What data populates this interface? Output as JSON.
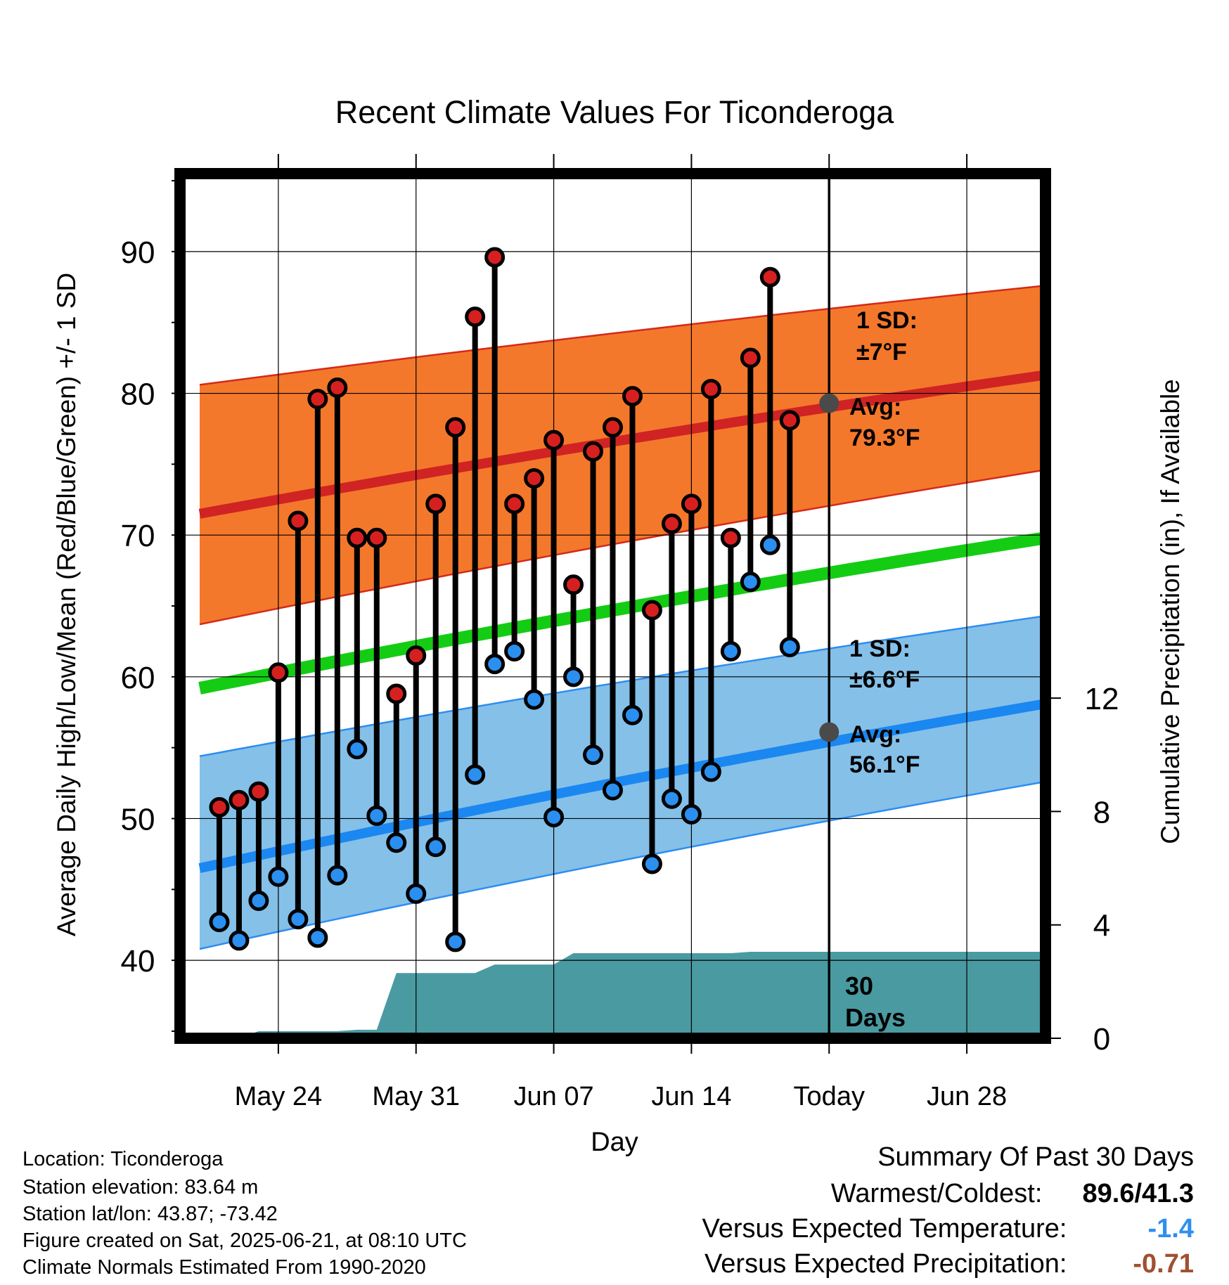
{
  "chart_data": {
    "type": "line",
    "title": "Recent Climate Values For Ticonderoga",
    "xlabel": "Day",
    "ylabel": "Average Daily High/Low/Mean (Red/Blue/Green) +/- 1 SD",
    "y2label": "Cumulative Precipitation (in), If Available",
    "ylim": [
      34.5,
      95.5
    ],
    "y2lim": [
      0,
      30.5
    ],
    "xlim": [
      "2025-05-19",
      "2025-07-02"
    ],
    "x_ticks": [
      {
        "date": "2025-05-24",
        "label": "May 24"
      },
      {
        "date": "2025-05-31",
        "label": "May 31"
      },
      {
        "date": "2025-06-07",
        "label": "Jun 07"
      },
      {
        "date": "2025-06-14",
        "label": "Jun 14"
      },
      {
        "date": "2025-06-21",
        "label": "Today"
      },
      {
        "date": "2025-06-28",
        "label": "Jun 28"
      }
    ],
    "y_ticks": [
      40,
      50,
      60,
      70,
      80,
      90
    ],
    "y2_ticks": [
      0,
      4,
      8,
      12
    ],
    "grid": true,
    "today": "2025-06-21",
    "today_label": "30 Days",
    "normals": {
      "x": [
        "2025-05-20",
        "2025-07-02"
      ],
      "high_avg": [
        71.5,
        81.3
      ],
      "high_upper": [
        80.6,
        87.6
      ],
      "high_lower": [
        63.7,
        74.6
      ],
      "mean": [
        59.2,
        69.8
      ],
      "low_avg": [
        46.5,
        58.1
      ],
      "low_upper": [
        54.4,
        64.3
      ],
      "low_lower": [
        40.8,
        52.6
      ]
    },
    "series": [
      {
        "name": "High",
        "color": "#d62020",
        "x": [
          "2025-05-21",
          "2025-05-22",
          "2025-05-23",
          "2025-05-24",
          "2025-05-25",
          "2025-05-26",
          "2025-05-27",
          "2025-05-28",
          "2025-05-29",
          "2025-05-30",
          "2025-05-31",
          "2025-06-01",
          "2025-06-02",
          "2025-06-03",
          "2025-06-04",
          "2025-06-05",
          "2025-06-06",
          "2025-06-07",
          "2025-06-08",
          "2025-06-09",
          "2025-06-10",
          "2025-06-11",
          "2025-06-12",
          "2025-06-13",
          "2025-06-14",
          "2025-06-15",
          "2025-06-16",
          "2025-06-17",
          "2025-06-18",
          "2025-06-19",
          "2025-06-20"
        ],
        "values": [
          50.8,
          51.3,
          51.9,
          60.3,
          71.0,
          79.6,
          80.4,
          69.8,
          69.8,
          58.8,
          61.5,
          72.2,
          77.6,
          85.4,
          89.6,
          72.2,
          74.0,
          76.7,
          66.5,
          75.9,
          77.6,
          79.8,
          64.7,
          70.8,
          72.2,
          80.3,
          69.8,
          82.5,
          88.2,
          78.1,
          null
        ]
      },
      {
        "name": "Low",
        "color": "#2b8ff0",
        "x": [
          "2025-05-21",
          "2025-05-22",
          "2025-05-23",
          "2025-05-24",
          "2025-05-25",
          "2025-05-26",
          "2025-05-27",
          "2025-05-28",
          "2025-05-29",
          "2025-05-30",
          "2025-05-31",
          "2025-06-01",
          "2025-06-02",
          "2025-06-03",
          "2025-06-04",
          "2025-06-05",
          "2025-06-06",
          "2025-06-07",
          "2025-06-08",
          "2025-06-09",
          "2025-06-10",
          "2025-06-11",
          "2025-06-12",
          "2025-06-13",
          "2025-06-14",
          "2025-06-15",
          "2025-06-16",
          "2025-06-17",
          "2025-06-18",
          "2025-06-19",
          "2025-06-20"
        ],
        "values": [
          42.7,
          41.4,
          44.2,
          45.9,
          42.9,
          41.6,
          46.0,
          54.9,
          50.2,
          48.3,
          44.7,
          48.0,
          41.3,
          53.1,
          60.9,
          61.8,
          58.4,
          50.1,
          60.0,
          54.5,
          52.0,
          57.3,
          46.8,
          51.4,
          50.3,
          53.3,
          61.8,
          66.7,
          69.3,
          62.1,
          null
        ]
      }
    ],
    "precip": {
      "x": [
        "2025-05-20",
        "2025-05-21",
        "2025-05-22",
        "2025-05-23",
        "2025-05-24",
        "2025-05-25",
        "2025-05-26",
        "2025-05-27",
        "2025-05-28",
        "2025-05-29",
        "2025-05-30",
        "2025-05-31",
        "2025-06-01",
        "2025-06-02",
        "2025-06-03",
        "2025-06-04",
        "2025-06-05",
        "2025-06-06",
        "2025-06-07",
        "2025-06-08",
        "2025-06-09",
        "2025-06-10",
        "2025-06-11",
        "2025-06-12",
        "2025-06-13",
        "2025-06-14",
        "2025-06-15",
        "2025-06-16",
        "2025-06-17",
        "2025-06-18",
        "2025-06-19",
        "2025-06-20",
        "2025-06-21",
        "2025-06-22",
        "2025-07-02"
      ],
      "values": [
        0,
        0,
        0,
        0.25,
        0.25,
        0.25,
        0.25,
        0.25,
        0.3,
        0.3,
        2.3,
        2.3,
        2.3,
        2.3,
        2.3,
        2.6,
        2.6,
        2.6,
        2.6,
        3.0,
        3.0,
        3.0,
        3.0,
        3.0,
        3.0,
        3.0,
        3.0,
        3.0,
        3.05,
        3.05,
        3.05,
        3.05,
        3.05,
        3.05,
        3.05
      ]
    },
    "annotations": {
      "high_sd": {
        "line1": "1 SD:",
        "line2": "±7°F"
      },
      "high_avg": {
        "line1": "Avg:",
        "line2": "79.3°F",
        "value": 79.3
      },
      "low_sd": {
        "line1": "1 SD:",
        "line2": "±6.6°F"
      },
      "low_avg": {
        "line1": "Avg:",
        "line2": "56.1°F",
        "value": 56.1
      }
    }
  },
  "colors": {
    "high_band": "#f4782b",
    "high_edge": "#d42a1a",
    "high_avg_line": "#d02323",
    "mean_line": "#14cc14",
    "low_band": "#85c0e8",
    "low_edge": "#2d8df0",
    "low_avg_line": "#1b87f0",
    "precip": "#4a9aa2",
    "high_marker": "#d62020",
    "low_marker": "#2b8ff0",
    "annotation": "#4a4a4a",
    "departure_temp": "#2d8ff0",
    "departure_precip": "#a05030"
  },
  "info": {
    "location": "Location: Ticonderoga",
    "elevation": "Station elevation: 83.64 m",
    "latlon": "Station lat/lon: 43.87; -73.42",
    "created": "Figure created on Sat, 2025-06-21, at 08:10 UTC",
    "normals": "Climate Normals Estimated From 1990-2020"
  },
  "summary": {
    "title": "Summary Of Past 30 Days",
    "warmest_coldest_label": "Warmest/Coldest:",
    "warmest_coldest_value": "89.6/41.3",
    "temp_label": "Versus Expected Temperature:",
    "temp_value": "-1.4",
    "precip_label": "Versus Expected Precipitation:",
    "precip_value": "-0.71"
  }
}
